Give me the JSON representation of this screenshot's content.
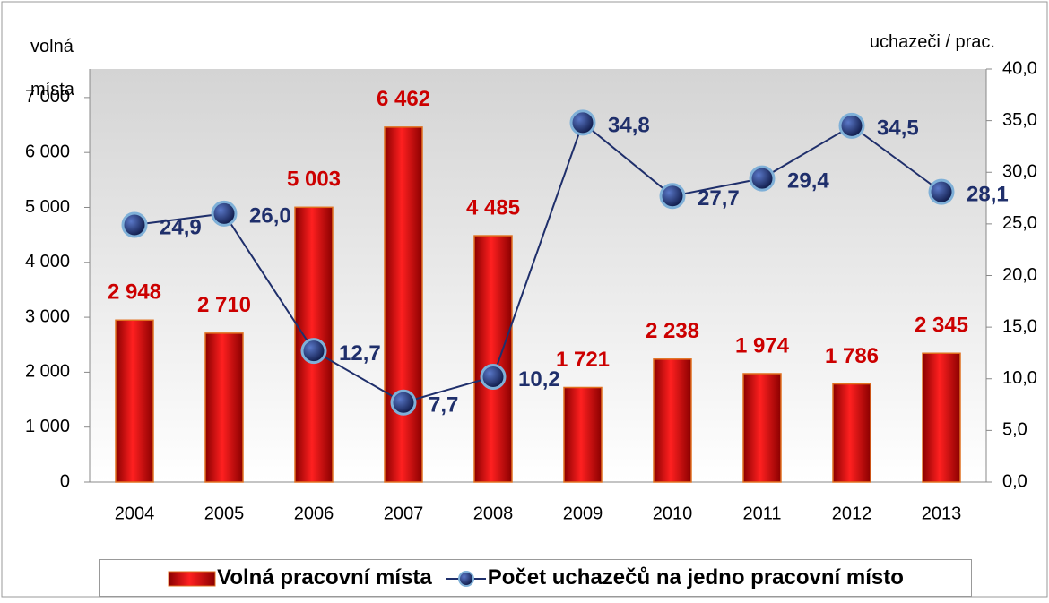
{
  "chart_data": {
    "type": "bar",
    "y_label": "volná místa",
    "y2_label": "uchazeči / prac.",
    "categories": [
      "2004",
      "2005",
      "2006",
      "2007",
      "2008",
      "2009",
      "2010",
      "2011",
      "2012",
      "2013"
    ],
    "series": [
      {
        "name": "Volná pracovní místa",
        "type": "bar",
        "color": "#cc0000",
        "values": [
          2948,
          2710,
          5003,
          6462,
          4485,
          1721,
          2238,
          1974,
          1786,
          2345
        ],
        "value_labels": [
          "2 948",
          "2 710",
          "5 003",
          "6 462",
          "4 485",
          "1 721",
          "2 238",
          "1 974",
          "1 786",
          "2 345"
        ]
      },
      {
        "name": "Počet uchazečů na jedno pracovní místo",
        "type": "line",
        "axis": "y2",
        "color": "#1f2f6b",
        "values": [
          24.9,
          26.0,
          12.7,
          7.7,
          10.2,
          34.8,
          27.7,
          29.4,
          34.5,
          28.1
        ],
        "value_labels": [
          "24,9",
          "26,0",
          "12,7",
          "7,7",
          "10,2",
          "34,8",
          "27,7",
          "29,4",
          "34,5",
          "28,1"
        ]
      }
    ],
    "ylim": [
      0,
      7520
    ],
    "yticks": [
      0,
      {
        "value": 1000,
        "label": "1 000"
      },
      {
        "value": 2000,
        "label": "2 000"
      },
      {
        "value": 3000,
        "label": "3 000"
      },
      {
        "value": 4000,
        "label": "4 000"
      },
      {
        "value": 5000,
        "label": "5 000"
      },
      {
        "value": 6000,
        "label": "6 000"
      },
      {
        "value": 7000,
        "label": "7 000"
      }
    ],
    "y2lim": [
      0,
      40
    ],
    "y2ticks": [
      {
        "value": 0,
        "label": "0,0"
      },
      {
        "value": 5,
        "label": "5,0"
      },
      {
        "value": 10,
        "label": "10,0"
      },
      {
        "value": 15,
        "label": "15,0"
      },
      {
        "value": 20,
        "label": "20,0"
      },
      {
        "value": 25,
        "label": "25,0"
      },
      {
        "value": 30,
        "label": "30,0"
      },
      {
        "value": 35,
        "label": "35,0"
      },
      {
        "value": 40,
        "label": "40,0"
      }
    ]
  }
}
